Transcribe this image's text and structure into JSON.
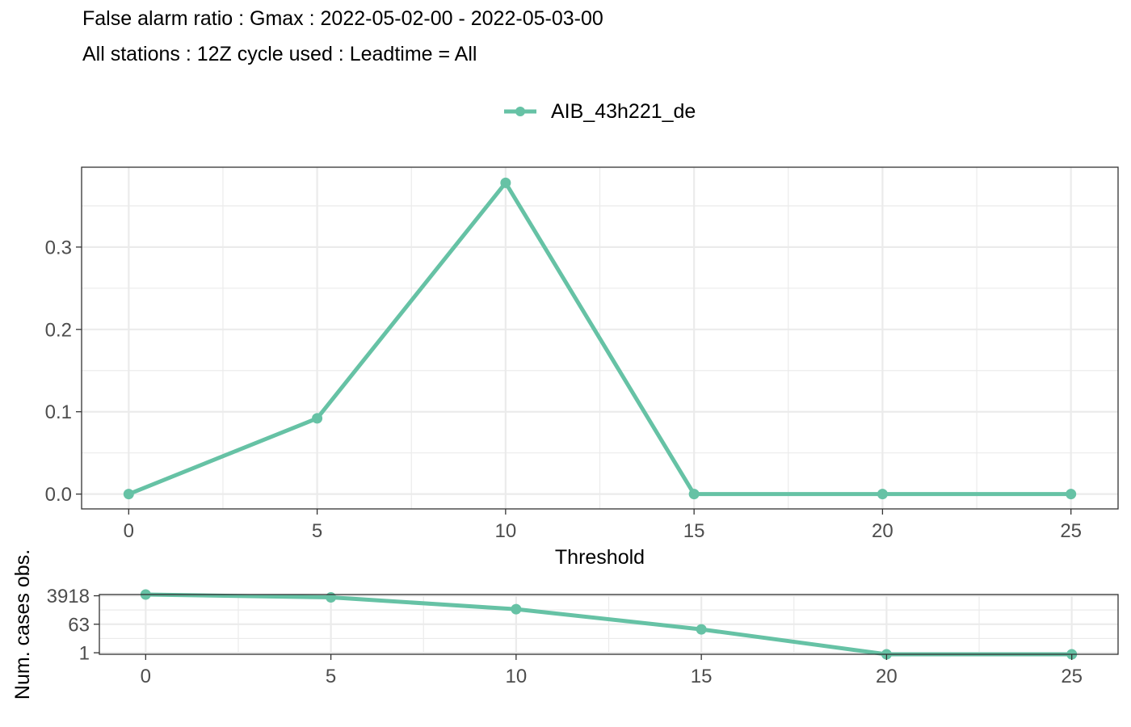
{
  "title": "False alarm ratio : Gmax : 2022-05-02-00 - 2022-05-03-00",
  "subtitle": "All stations : 12Z cycle used : Leadtime = All",
  "legend": {
    "label": "AIB_43h221_de"
  },
  "colors": {
    "series": "#66c2a5",
    "grid": "#ebebeb",
    "axis": "#333333",
    "tick_text": "#4d4d4d"
  },
  "chart_data": [
    {
      "type": "line",
      "title": "False alarm ratio : Gmax : 2022-05-02-00 - 2022-05-03-00",
      "subtitle": "All stations : 12Z cycle used : Leadtime = All",
      "xlabel": "Threshold",
      "ylabel": "",
      "x": [
        0,
        5,
        10,
        15,
        20,
        25
      ],
      "series": [
        {
          "name": "AIB_43h221_de",
          "values": [
            0.0,
            0.092,
            0.378,
            0.0,
            0.0,
            0.0
          ]
        }
      ],
      "xlim": [
        -1.25,
        26.25
      ],
      "ylim": [
        -0.018,
        0.397
      ],
      "xticks": [
        0,
        5,
        10,
        15,
        20,
        25
      ],
      "yticks": [
        0.0,
        0.1,
        0.2,
        0.3
      ],
      "ytick_labels": [
        "0.0",
        "0.1",
        "0.2",
        "0.3"
      ],
      "grid": true,
      "legend_position": "top"
    },
    {
      "type": "line",
      "title": "",
      "xlabel": "",
      "ylabel": "Num. cases obs.",
      "y_scale": "log",
      "x": [
        0,
        5,
        10,
        15,
        20,
        25
      ],
      "series": [
        {
          "name": "AIB_43h221_de",
          "values": [
            4700,
            3100,
            560,
            30,
            0.8,
            0.8
          ]
        }
      ],
      "xlim": [
        -1.25,
        26.25
      ],
      "ylim": [
        0.8,
        4700
      ],
      "xticks": [
        0,
        5,
        10,
        15,
        20,
        25
      ],
      "yticks": [
        3918,
        63,
        1
      ],
      "ytick_labels": [
        "3918",
        "63",
        "1"
      ],
      "grid": true,
      "legend_position": "none"
    }
  ]
}
